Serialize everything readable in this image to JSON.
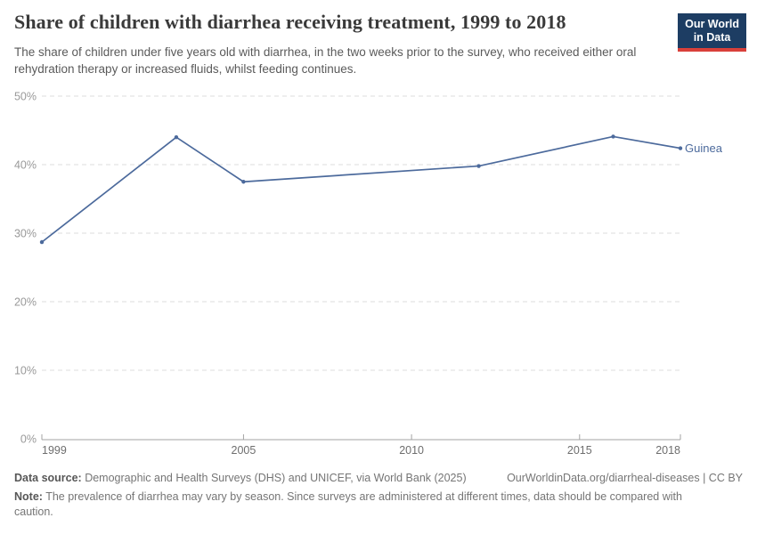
{
  "header": {
    "logo": {
      "line1": "Our World",
      "line2": "in Data",
      "bg_color": "#1d3d63",
      "accent_color": "#d9403a"
    }
  },
  "chart_data": {
    "type": "line",
    "title": "Share of children with diarrhea receiving treatment, 1999 to 2018",
    "subtitle": "The share of children under five years old with diarrhea, in the two weeks prior to the survey, who received either oral rehydration therapy or increased fluids, whilst feeding continues.",
    "x": [
      1999,
      2003,
      2005,
      2012,
      2016,
      2018
    ],
    "series": [
      {
        "name": "Guinea",
        "color": "#4c6a9c",
        "values": [
          28.7,
          44.0,
          37.5,
          39.8,
          44.1,
          42.4
        ]
      }
    ],
    "xlabel": "",
    "ylabel": "",
    "xlim": [
      1999,
      2018
    ],
    "ylim": [
      0,
      50
    ],
    "x_ticks": [
      1999,
      2005,
      2010,
      2015,
      2018
    ],
    "y_ticks": [
      0,
      10,
      20,
      30,
      40,
      50
    ],
    "y_tick_suffix": "%",
    "grid": "horizontal-dashed",
    "legend_position": "end-of-line-label",
    "colors": {
      "gridline": "#dcdcdc",
      "axis": "#a3a3a3",
      "y_tick_label": "#999999",
      "x_tick_label": "#6e6e6e"
    }
  },
  "footer": {
    "datasource_label": "Data source:",
    "datasource_text": " Demographic and Health Surveys (DHS) and UNICEF, via World Bank (2025)",
    "link_text": "OurWorldinData.org/diarrheal-diseases | CC BY",
    "note_label": "Note:",
    "note_text": " The prevalence of diarrhea may vary by season. Since surveys are administered at different times, data should be compared with caution."
  }
}
